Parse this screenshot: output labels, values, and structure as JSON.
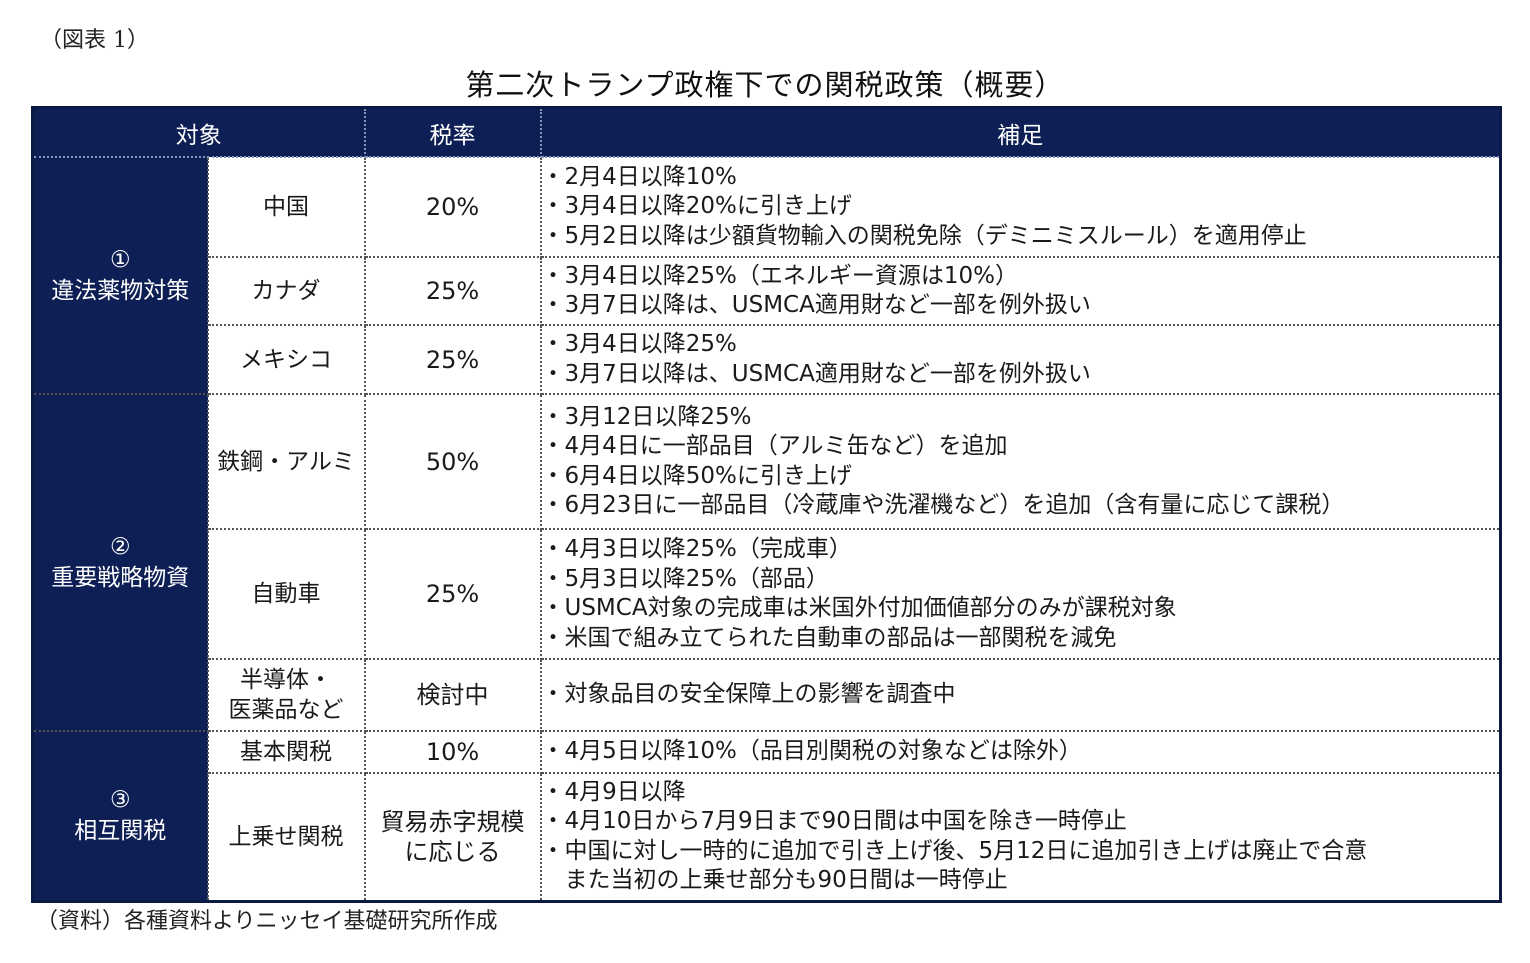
{
  "figure_label": "（図表 1）",
  "title": "第二次トランプ政権下での関税政策（概要）",
  "header": {
    "target": "対象",
    "rate": "税率",
    "notes": "補足"
  },
  "categories": [
    {
      "num": "①",
      "name": "違法薬物対策"
    },
    {
      "num": "②",
      "name": "重要戦略物資"
    },
    {
      "num": "③",
      "name": "相互関税"
    }
  ],
  "rows": [
    {
      "item": "中国",
      "rate": "20%",
      "notes": [
        "・2月4日以降10%",
        "・3月4日以降20%に引き上げ",
        "・5月2日以降は少額貨物輸入の関税免除（デミニミスルール）を適用停止"
      ]
    },
    {
      "item": "カナダ",
      "rate": "25%",
      "notes": [
        "・3月4日以降25%（エネルギー資源は10%）",
        "・3月7日以降は、USMCA適用財など一部を例外扱い"
      ]
    },
    {
      "item": "メキシコ",
      "rate": "25%",
      "notes": [
        "・3月4日以降25%",
        "・3月7日以降は、USMCA適用財など一部を例外扱い"
      ]
    },
    {
      "item": "鉄鋼・アルミ",
      "rate": "50%",
      "notes": [
        "・3月12日以降25%",
        "・4月4日に一部品目（アルミ缶など）を追加",
        "・6月4日以降50%に引き上げ",
        "・6月23日に一部品目（冷蔵庫や洗濯機など）を追加（含有量に応じて課税）"
      ]
    },
    {
      "item": "自動車",
      "rate": "25%",
      "notes": [
        "・4月3日以降25%（完成車）",
        "・5月3日以降25%（部品）",
        "・USMCA対象の完成車は米国外付加価値部分のみが課税対象",
        "・米国で組み立てられた自動車の部品は一部関税を減免"
      ]
    },
    {
      "item_line1": "半導体・",
      "item_line2": "医薬品など",
      "rate": "検討中",
      "notes": [
        "・対象品目の安全保障上の影響を調査中"
      ]
    },
    {
      "item": "基本関税",
      "rate": "10%",
      "notes": [
        "・4月5日以降10%（品目別関税の対象などは除外）"
      ]
    },
    {
      "item": "上乗せ関税",
      "rate_line1": "貿易赤字規模",
      "rate_line2": "に応じる",
      "notes": [
        "・4月9日以降",
        "・4月10日から7月9日まで90日間は中国を除き一時停止",
        "・中国に対し一時的に追加で引き上げ後、5月12日に追加引き上げは廃止で合意",
        "　また当初の上乗せ部分も90日間は一時停止"
      ]
    }
  ],
  "source_note": "（資料）各種資料よりニッセイ基礎研究所作成"
}
